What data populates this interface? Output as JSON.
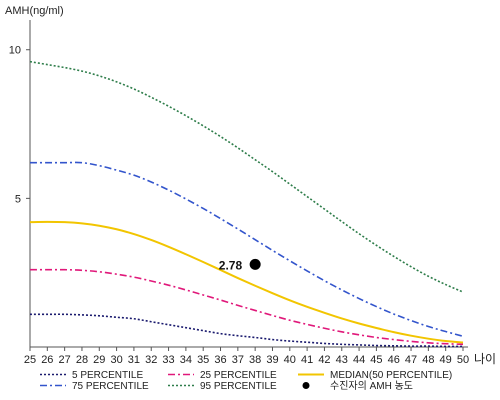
{
  "chart_data": {
    "type": "line",
    "ylabel": "AMH(ng/ml)",
    "xlabel": "나이",
    "x": [
      25,
      26,
      27,
      28,
      29,
      30,
      31,
      32,
      33,
      34,
      35,
      36,
      37,
      38,
      39,
      40,
      41,
      42,
      43,
      44,
      45,
      46,
      47,
      48,
      49,
      50
    ],
    "xlim": [
      25,
      50
    ],
    "ylim": [
      0,
      11
    ],
    "yticks": [
      5,
      10
    ],
    "grid": false,
    "legend_position": "bottom",
    "series": [
      {
        "name": "5 PERCENTILE",
        "color": "#1a1a6e",
        "dash": "dotted",
        "values": [
          1.1,
          1.1,
          1.1,
          1.08,
          1.05,
          1.0,
          0.95,
          0.85,
          0.75,
          0.65,
          0.55,
          0.45,
          0.38,
          0.32,
          0.25,
          0.2,
          0.16,
          0.12,
          0.09,
          0.07,
          0.05,
          0.04,
          0.03,
          0.03,
          0.02,
          0.02
        ]
      },
      {
        "name": "25 PERCENTILE",
        "color": "#e0187a",
        "dash": "dashdot",
        "values": [
          2.6,
          2.6,
          2.6,
          2.58,
          2.53,
          2.45,
          2.35,
          2.22,
          2.08,
          1.92,
          1.75,
          1.58,
          1.4,
          1.23,
          1.06,
          0.9,
          0.76,
          0.63,
          0.51,
          0.41,
          0.32,
          0.25,
          0.19,
          0.14,
          0.11,
          0.09
        ]
      },
      {
        "name": "MEDIAN(50 PERCENTILE)",
        "color": "#f2c500",
        "dash": "solid",
        "values": [
          4.2,
          4.21,
          4.2,
          4.16,
          4.08,
          3.96,
          3.8,
          3.6,
          3.37,
          3.12,
          2.86,
          2.59,
          2.32,
          2.06,
          1.81,
          1.57,
          1.35,
          1.15,
          0.96,
          0.79,
          0.64,
          0.5,
          0.38,
          0.28,
          0.2,
          0.15
        ]
      },
      {
        "name": "75 PERCENTILE",
        "color": "#3355cc",
        "dash": "dashdot",
        "values": [
          6.2,
          6.2,
          6.2,
          6.2,
          6.1,
          5.95,
          5.78,
          5.55,
          5.28,
          4.98,
          4.66,
          4.32,
          3.97,
          3.61,
          3.25,
          2.9,
          2.56,
          2.23,
          1.92,
          1.63,
          1.36,
          1.11,
          0.89,
          0.69,
          0.52,
          0.36
        ]
      },
      {
        "name": "95 PERCENTILE",
        "color": "#2e7d4a",
        "dash": "dotted",
        "values": [
          9.6,
          9.5,
          9.4,
          9.28,
          9.12,
          8.92,
          8.68,
          8.4,
          8.1,
          7.78,
          7.44,
          7.08,
          6.7,
          6.3,
          5.9,
          5.48,
          5.06,
          4.64,
          4.22,
          3.81,
          3.42,
          3.05,
          2.7,
          2.38,
          2.1,
          1.85
        ]
      }
    ],
    "points": [
      {
        "name": "수진자의 AMH 농도",
        "x": 38,
        "y": 2.78,
        "label": "2.78",
        "color": "#000000"
      }
    ],
    "legend": [
      {
        "name": "5 PERCENTILE",
        "color": "#1a1a6e",
        "dash": "dotted",
        "kind": "line"
      },
      {
        "name": "25 PERCENTILE",
        "color": "#e0187a",
        "dash": "dashdot",
        "kind": "line"
      },
      {
        "name": "MEDIAN(50 PERCENTILE)",
        "color": "#f2c500",
        "dash": "solid",
        "kind": "line"
      },
      {
        "name": "75 PERCENTILE",
        "color": "#3355cc",
        "dash": "dashdot",
        "kind": "line"
      },
      {
        "name": "95 PERCENTILE",
        "color": "#2e7d4a",
        "dash": "dotted",
        "kind": "line"
      },
      {
        "name": "수진자의 AMH 농도",
        "color": "#000000",
        "dash": "solid",
        "kind": "dot"
      }
    ]
  }
}
